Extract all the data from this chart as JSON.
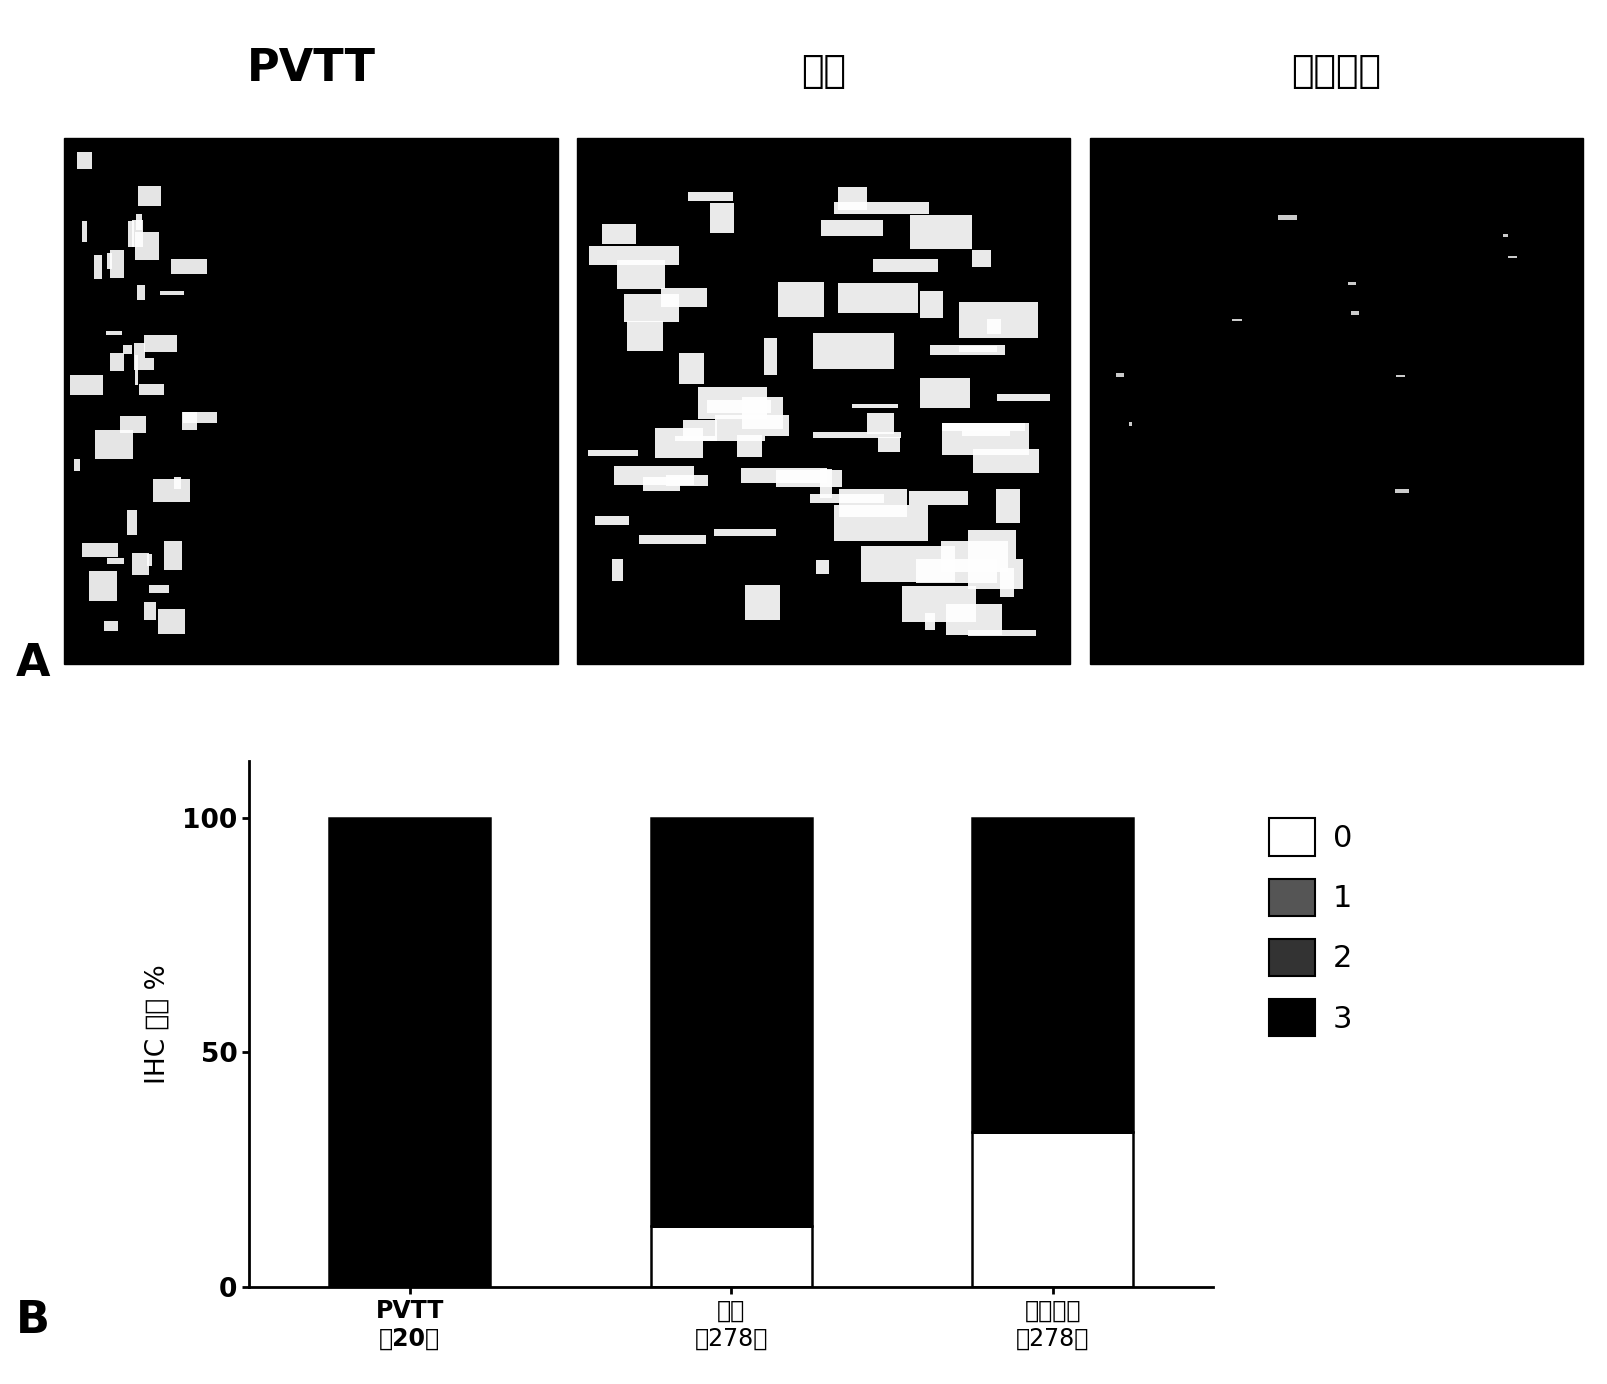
{
  "panel_a_label_pvtt": "PVTT",
  "panel_a_label_tumor": "肿瘾",
  "panel_a_label_paratumor": "癌旁组织",
  "panel_a_letter": "A",
  "panel_b_letter": "B",
  "cat_label_pvtt_line1": "PVTT",
  "cat_label_pvtt_line2": "（20）",
  "cat_label_tumor_line1": "肿瘾",
  "cat_label_tumor_line2": "（278）",
  "cat_label_paratumor_line1": "癌旁组织",
  "cat_label_paratumor_line2": "（278）",
  "score0_values": [
    0,
    13,
    33
  ],
  "score1_values": [
    0,
    0,
    0
  ],
  "score2_values": [
    0,
    0,
    0
  ],
  "score3_values": [
    100,
    87,
    67
  ],
  "color_0": "#ffffff",
  "color_1": "#555555",
  "color_2": "#333333",
  "color_3": "#000000",
  "ylabel_part1": "IHC 评分 %",
  "yticks": [
    0,
    50,
    100
  ],
  "bar_width": 0.5,
  "legend_labels": [
    "0",
    "1",
    "2",
    "3"
  ],
  "bar_edge_color": "#000000",
  "fig_width": 16.07,
  "fig_height": 13.84
}
